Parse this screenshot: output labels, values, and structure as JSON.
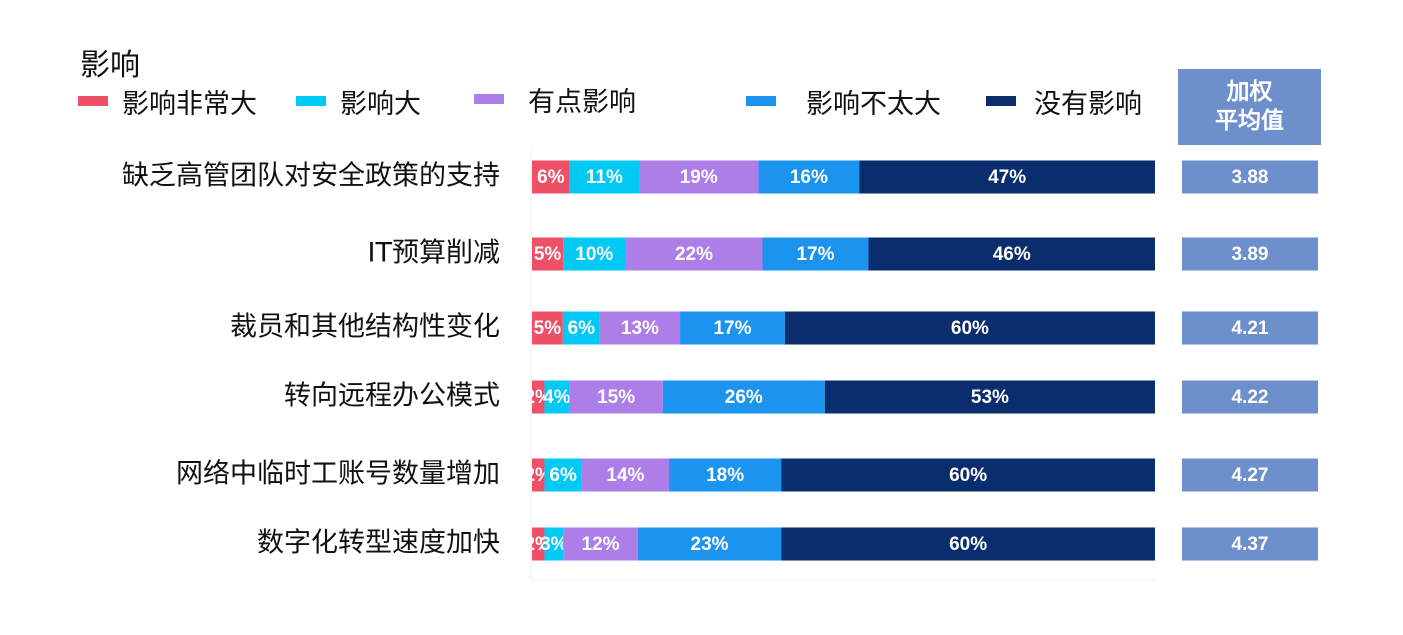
{
  "chart_data": {
    "type": "bar",
    "orientation": "horizontal",
    "stacked": true,
    "percent_stacked": true,
    "title": "影响",
    "categories": [
      "缺乏高管团队对安全政策的支持",
      "IT预算削减",
      "裁员和其他结构性变化",
      "转向远程办公模式",
      "网络中临时工账号数量增加",
      "数字化转型速度加快"
    ],
    "series": [
      {
        "name": "影响非常大",
        "color": "#ef4f67",
        "values": [
          6,
          5,
          5,
          2,
          2,
          2
        ]
      },
      {
        "name": "影响大",
        "color": "#00c9f4",
        "values": [
          11,
          10,
          6,
          4,
          6,
          3
        ]
      },
      {
        "name": "有点影响",
        "color": "#ad7de8",
        "values": [
          19,
          22,
          13,
          15,
          14,
          12
        ]
      },
      {
        "name": "影响不太大",
        "color": "#1a94ee",
        "values": [
          16,
          17,
          17,
          26,
          18,
          23
        ]
      },
      {
        "name": "没有影响",
        "color": "#0a2d6e",
        "values": [
          47,
          46,
          60,
          53,
          60,
          60
        ]
      }
    ],
    "data_label_suffix": "%",
    "weighted_average": {
      "header": [
        "加权",
        "平均值"
      ],
      "values": [
        "3.88",
        "3.89",
        "4.21",
        "4.22",
        "4.27",
        "4.37"
      ],
      "color": "#6d8fcb"
    },
    "legend_position": "top",
    "grid": false
  }
}
